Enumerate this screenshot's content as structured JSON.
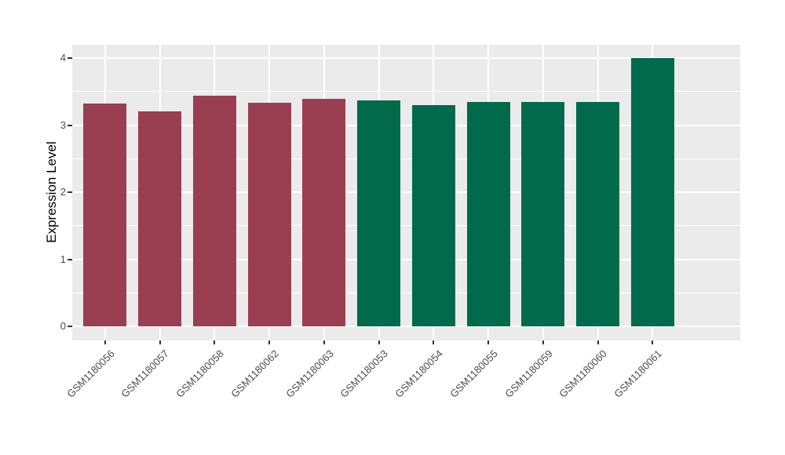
{
  "chart_data": {
    "type": "bar",
    "title": "",
    "xlabel": "",
    "ylabel": "Expression Level",
    "categories": [
      "GSM1180056",
      "GSM1180057",
      "GSM1180058",
      "GSM1180062",
      "GSM1180063",
      "GSM1180053",
      "GSM1180054",
      "GSM1180055",
      "GSM1180059",
      "GSM1180060",
      "GSM1180061"
    ],
    "values": [
      3.32,
      3.21,
      3.44,
      3.33,
      3.39,
      3.37,
      3.3,
      3.34,
      3.35,
      3.34,
      4.0
    ],
    "bar_colors": [
      "#9A3F52",
      "#9A3F52",
      "#9A3F52",
      "#9A3F52",
      "#9A3F52",
      "#006A4A",
      "#006A4A",
      "#006A4A",
      "#006A4A",
      "#006A4A",
      "#006A4A"
    ],
    "groups": [
      {
        "name": "group-red",
        "color": "#9A3F52",
        "samples": [
          "GSM1180056",
          "GSM1180057",
          "GSM1180058",
          "GSM1180062",
          "GSM1180063"
        ]
      },
      {
        "name": "group-green",
        "color": "#006A4A",
        "samples": [
          "GSM1180053",
          "GSM1180054",
          "GSM1180055",
          "GSM1180059",
          "GSM1180060",
          "GSM1180061"
        ]
      }
    ],
    "yticks": [
      "0",
      "1",
      "2",
      "3",
      "4"
    ],
    "ytick_values": [
      0,
      1,
      2,
      3,
      4
    ],
    "yminor_values": [
      0.5,
      1.5,
      2.5,
      3.5
    ],
    "ylim": [
      -0.21,
      4.2
    ],
    "x_tick_rotation": 45,
    "grid": true,
    "legend": "none",
    "panel_background": "#EBEBEB",
    "grid_color": "#FFFFFF",
    "axis_text_color": "#4D4D4D",
    "axis_title_color": "#000000"
  }
}
